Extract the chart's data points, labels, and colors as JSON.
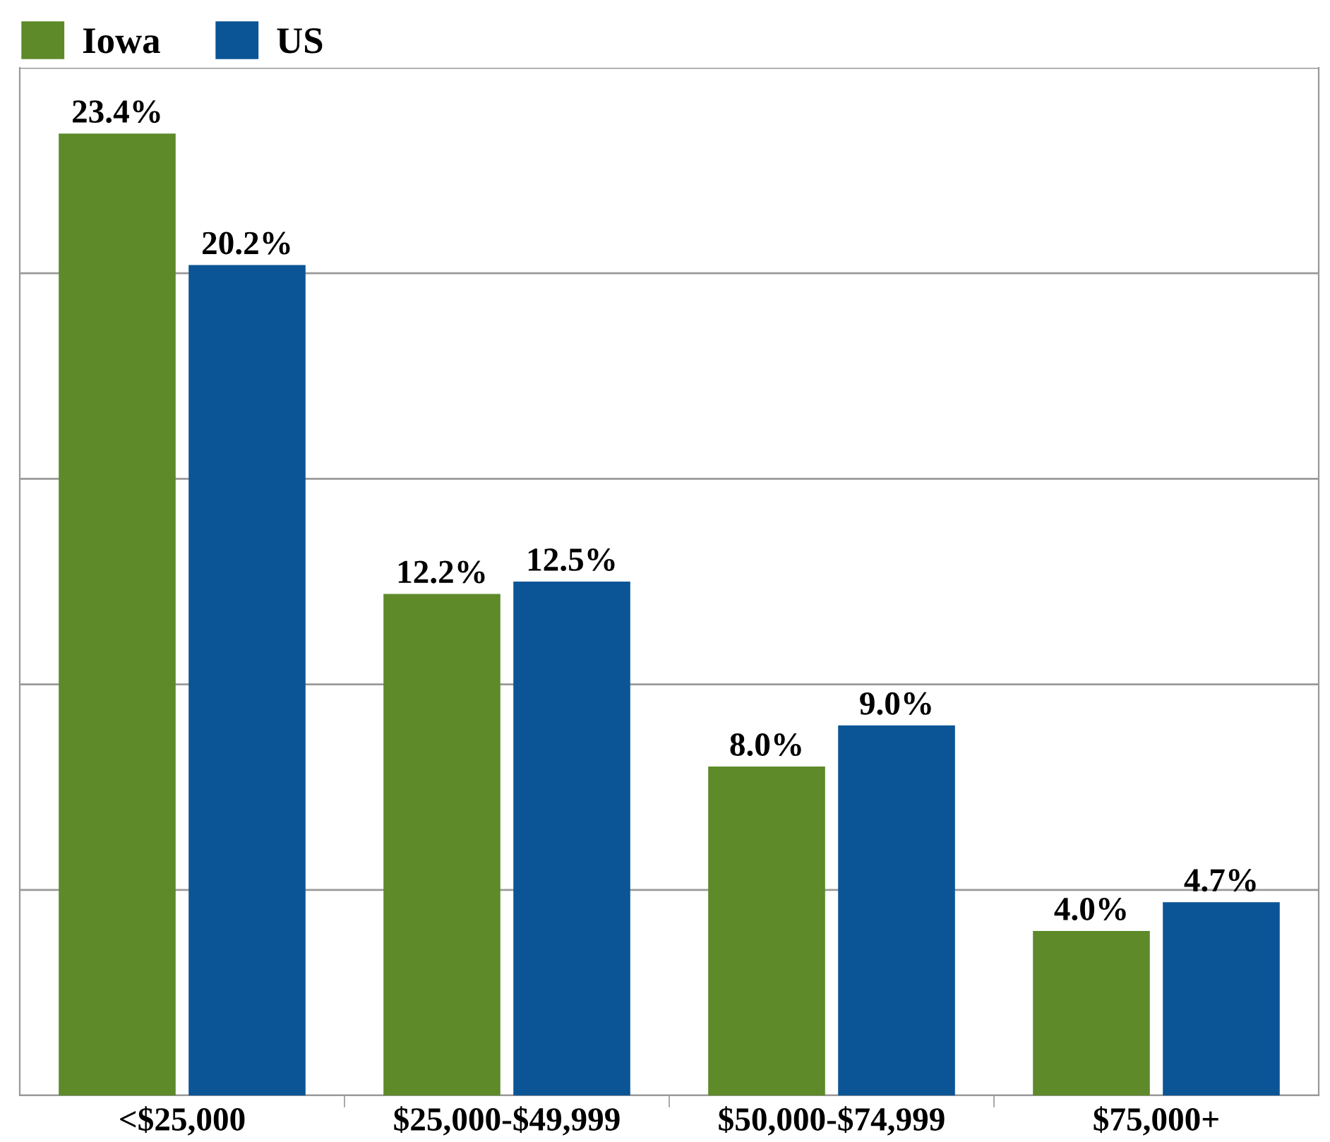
{
  "chart_data": {
    "type": "bar",
    "categories": [
      "<$25,000",
      "$25,000-$49,999",
      "$50,000-$74,999",
      "$75,000+"
    ],
    "series": [
      {
        "name": "Iowa",
        "color": "#5e8a2a",
        "values": [
          23.4,
          12.2,
          8.0,
          4.0
        ],
        "value_labels": [
          "23.4%",
          "12.2%",
          "8.0%",
          "4.0%"
        ]
      },
      {
        "name": "US",
        "color": "#0b5596",
        "values": [
          20.2,
          12.5,
          9.0,
          4.7
        ],
        "value_labels": [
          "20.2%",
          "12.5%",
          "9.0%",
          "4.7%"
        ]
      }
    ],
    "ylim": [
      0,
      25
    ],
    "yticks": [
      {
        "value": 0,
        "label": null
      },
      {
        "value": 5,
        "label": null
      },
      {
        "value": 10,
        "label": null
      },
      {
        "value": 15,
        "label": null
      },
      {
        "value": 20,
        "label": null
      },
      {
        "value": 25,
        "label": null
      }
    ],
    "grid": "y",
    "tick_labels": "x",
    "legend": "top left"
  }
}
